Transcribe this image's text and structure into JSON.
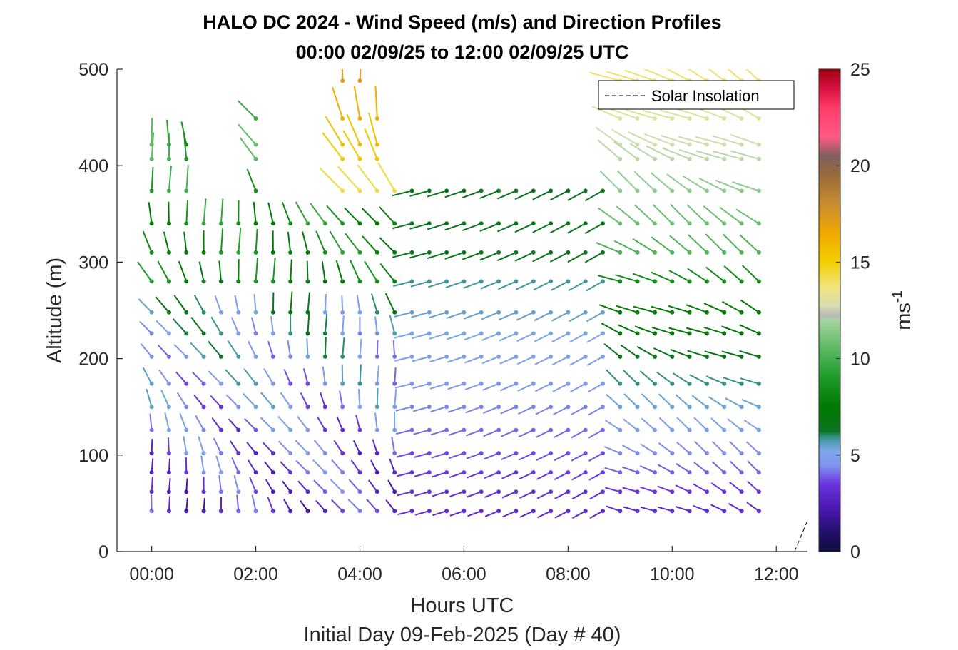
{
  "chart_data": {
    "type": "wind-barb-profile",
    "title": "HALO DC 2024 - Wind Speed (m/s) and Direction Profiles",
    "subtitle": "00:00 02/09/25 to 12:00 02/09/25  UTC",
    "xlabel": "Hours UTC",
    "xlabel2": "Initial Day 09-Feb-2025 (Day # 40)",
    "ylabel": "Altitude (m)",
    "colorbar_label": "ms",
    "colorbar_label_sup": "-1",
    "xlim": [
      -0.6667,
      12.6
    ],
    "ylim": [
      0,
      500
    ],
    "xticks": [
      {
        "value": 0,
        "label": "00:00"
      },
      {
        "value": 2,
        "label": "02:00"
      },
      {
        "value": 4,
        "label": "04:00"
      },
      {
        "value": 6,
        "label": "06:00"
      },
      {
        "value": 8,
        "label": "08:00"
      },
      {
        "value": 10,
        "label": "10:00"
      },
      {
        "value": 12,
        "label": "12:00"
      }
    ],
    "yticks": [
      {
        "value": 0,
        "label": "0"
      },
      {
        "value": 100,
        "label": "100"
      },
      {
        "value": 200,
        "label": "200"
      },
      {
        "value": 300,
        "label": "300"
      },
      {
        "value": 400,
        "label": "400"
      },
      {
        "value": 500,
        "label": "500"
      }
    ],
    "colorbar_ticks": [
      {
        "value": 0,
        "label": "0"
      },
      {
        "value": 5,
        "label": "5"
      },
      {
        "value": 10,
        "label": "10"
      },
      {
        "value": 15,
        "label": "15"
      },
      {
        "value": 20,
        "label": "20"
      },
      {
        "value": 25,
        "label": "25"
      }
    ],
    "colorbar_range": [
      0,
      25
    ],
    "legend": {
      "entries": [
        {
          "label": "Solar Insolation",
          "style": "dashed"
        }
      ],
      "location": "top-right"
    },
    "altitudes": [
      42,
      62,
      82,
      102,
      126,
      150,
      174,
      202,
      226,
      248,
      280,
      310,
      340,
      374,
      407,
      422,
      449,
      488
    ],
    "times_hours": [
      0,
      0.333,
      0.667,
      1,
      1.333,
      1.667,
      2,
      2.333,
      2.667,
      3,
      3.333,
      3.667,
      4,
      4.333,
      4.667,
      5,
      5.333,
      5.667,
      6,
      6.333,
      6.667,
      7,
      7.333,
      7.667,
      8,
      8.333,
      8.667,
      9,
      9.333,
      9.667,
      10,
      10.333,
      10.667,
      11,
      11.333,
      11.667
    ],
    "speed_note": "wind speed (m/s) per barb encoded by color",
    "solar_insolation": [
      [
        -0.6667,
        0
      ],
      [
        12.35,
        0
      ],
      [
        12.6,
        32
      ]
    ]
  }
}
